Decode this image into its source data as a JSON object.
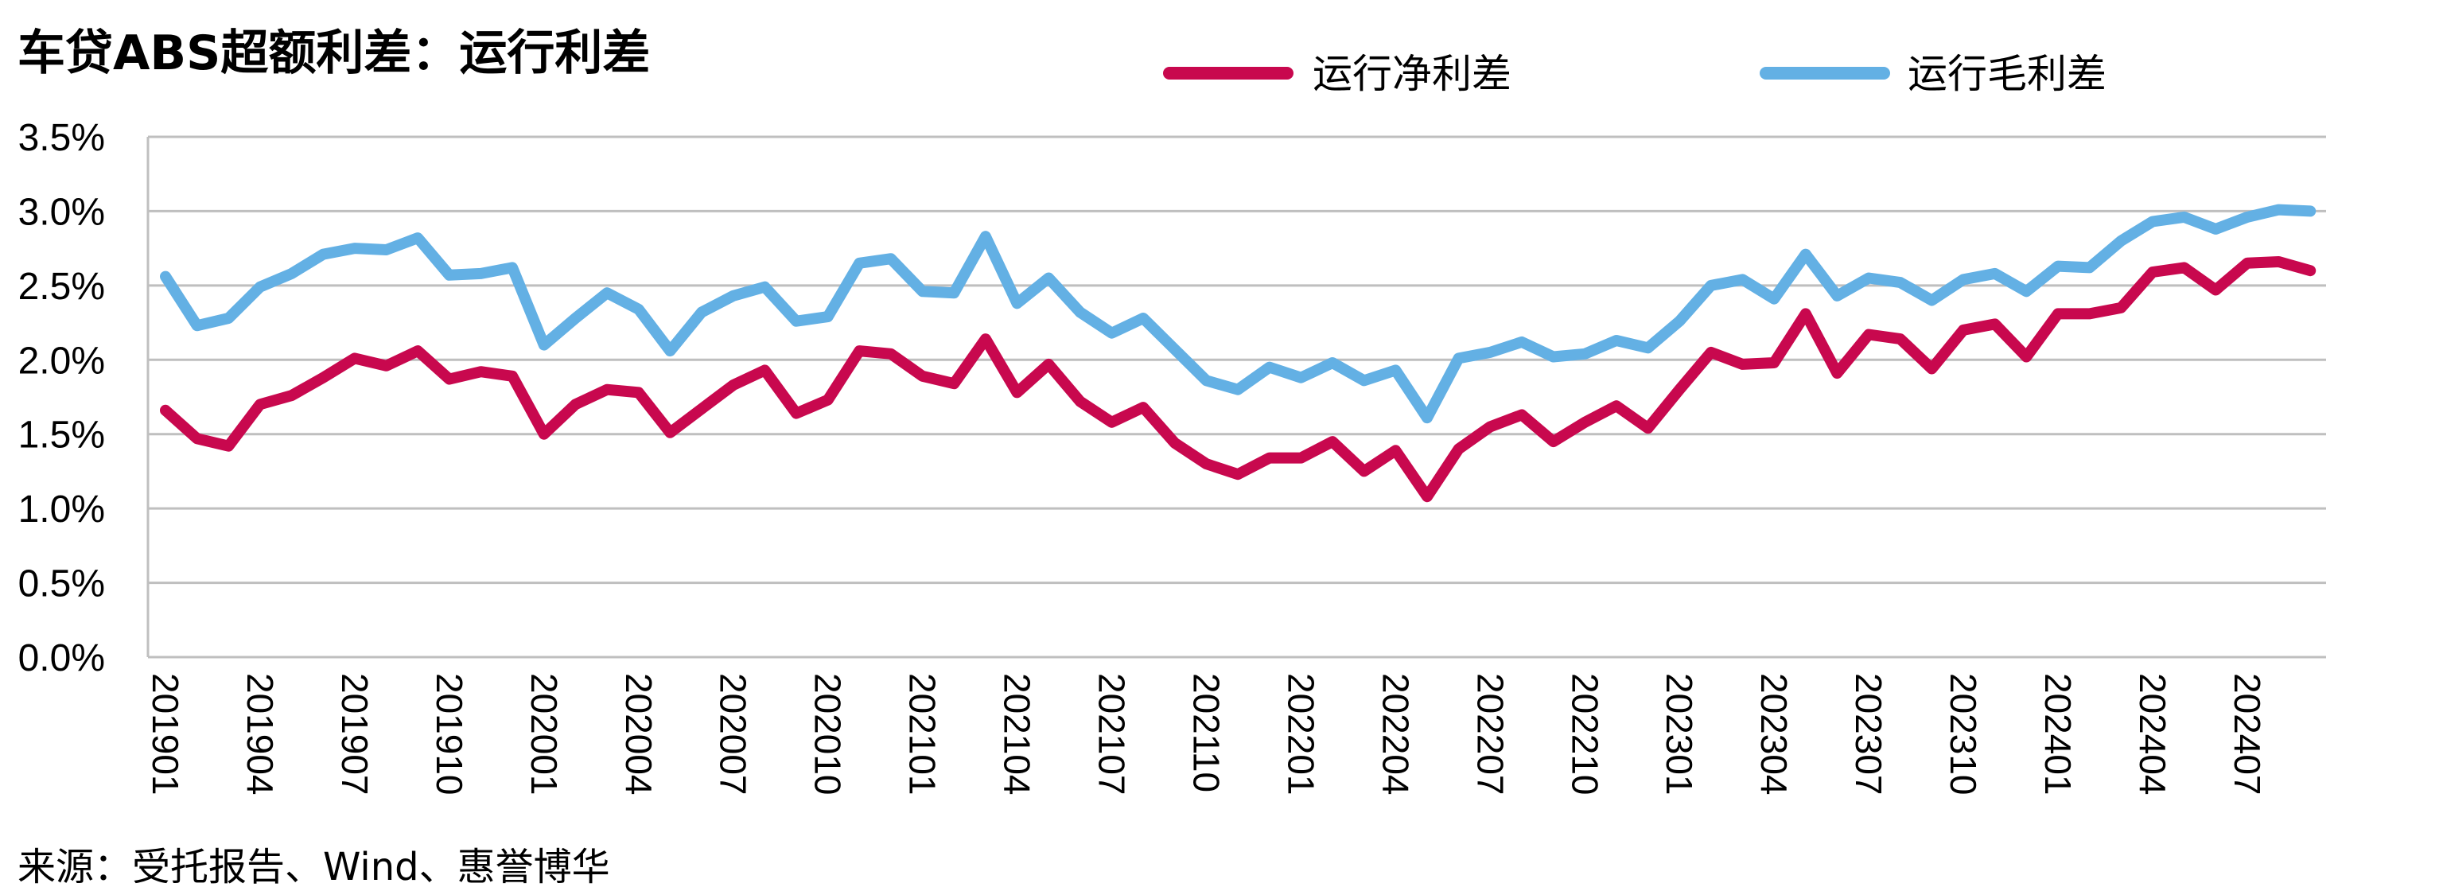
{
  "title": "车贷ABS超额利差：运行利差",
  "source": "来源：受托报告、Wind、惠誉博华",
  "chart_data": {
    "type": "line",
    "title": "车贷ABS超额利差：运行利差",
    "ylim": [
      0,
      3.5
    ],
    "y_ticks": [
      "0.0%",
      "0.5%",
      "1.0%",
      "1.5%",
      "2.0%",
      "2.5%",
      "3.0%",
      "3.5%"
    ],
    "grid": true,
    "legend_position": "top",
    "x": [
      "201901",
      "201902",
      "201903",
      "201904",
      "201905",
      "201906",
      "201907",
      "201908",
      "201909",
      "201910",
      "201911",
      "201912",
      "202001",
      "202002",
      "202003",
      "202004",
      "202005",
      "202006",
      "202007",
      "202008",
      "202009",
      "202010",
      "202011",
      "202012",
      "202101",
      "202102",
      "202103",
      "202104",
      "202105",
      "202106",
      "202107",
      "202108",
      "202109",
      "202110",
      "202111",
      "202112",
      "202201",
      "202202",
      "202203",
      "202204",
      "202205",
      "202206",
      "202207",
      "202208",
      "202209",
      "202210",
      "202211",
      "202212",
      "202301",
      "202302",
      "202303",
      "202304",
      "202305",
      "202306",
      "202307",
      "202308",
      "202309",
      "202310",
      "202311",
      "202312",
      "202401",
      "202402",
      "202403",
      "202404",
      "202405",
      "202406",
      "202407",
      "202408",
      "202409"
    ],
    "x_tick_labels": [
      "201901",
      "201904",
      "201907",
      "201910",
      "202001",
      "202004",
      "202007",
      "202010",
      "202101",
      "202104",
      "202107",
      "202110",
      "202201",
      "202204",
      "202207",
      "202210",
      "202301",
      "202304",
      "202307",
      "202310",
      "202401",
      "202404",
      "202407"
    ],
    "series": [
      {
        "name": "运行净利差",
        "color": "#C8084E",
        "values": [
          1.66,
          1.47,
          1.42,
          1.7,
          1.76,
          1.88,
          2.01,
          1.96,
          2.06,
          1.87,
          1.92,
          1.89,
          1.5,
          1.7,
          1.8,
          1.78,
          1.51,
          1.67,
          1.83,
          1.93,
          1.64,
          1.73,
          2.06,
          2.04,
          1.89,
          1.84,
          2.14,
          1.78,
          1.97,
          1.72,
          1.58,
          1.68,
          1.44,
          1.3,
          1.23,
          1.34,
          1.34,
          1.45,
          1.25,
          1.39,
          1.08,
          1.4,
          1.55,
          1.63,
          1.45,
          1.58,
          1.69,
          1.54,
          1.8,
          2.05,
          1.97,
          1.98,
          2.31,
          1.91,
          2.17,
          2.14,
          1.94,
          2.2,
          2.24,
          2.02,
          2.31,
          2.31,
          2.35,
          2.59,
          2.62,
          2.47,
          2.65,
          2.66,
          2.6
        ]
      },
      {
        "name": "运行毛利差",
        "color": "#63B0E4",
        "values": [
          2.56,
          2.23,
          2.28,
          2.49,
          2.58,
          2.71,
          2.75,
          2.74,
          2.82,
          2.57,
          2.58,
          2.62,
          2.1,
          2.28,
          2.45,
          2.34,
          2.06,
          2.32,
          2.43,
          2.49,
          2.26,
          2.29,
          2.65,
          2.68,
          2.46,
          2.45,
          2.83,
          2.38,
          2.55,
          2.32,
          2.18,
          2.28,
          2.07,
          1.86,
          1.8,
          1.95,
          1.88,
          1.98,
          1.86,
          1.93,
          1.61,
          2.01,
          2.05,
          2.12,
          2.02,
          2.04,
          2.13,
          2.08,
          2.26,
          2.5,
          2.54,
          2.41,
          2.71,
          2.43,
          2.55,
          2.52,
          2.4,
          2.54,
          2.58,
          2.46,
          2.63,
          2.62,
          2.8,
          2.93,
          2.96,
          2.88,
          2.96,
          3.01,
          3.0
        ]
      }
    ]
  }
}
